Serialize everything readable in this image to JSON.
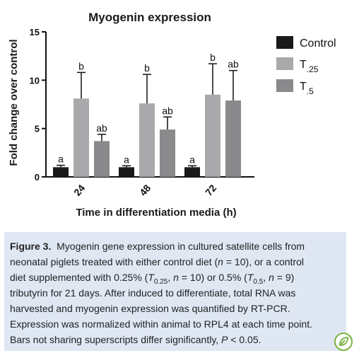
{
  "chart_data": {
    "type": "bar",
    "title": "Myogenin expression",
    "xlabel": "Time in differentiation media (h)",
    "ylabel": "Fold change over control",
    "ylim": [
      0,
      15
    ],
    "yticks": [
      "0",
      "5",
      "10",
      "15"
    ],
    "categories": [
      "24",
      "48",
      "72"
    ],
    "legend_position": "right",
    "series": [
      {
        "name": "Control",
        "color": "#1a1a1a",
        "values": [
          1.0,
          1.0,
          1.0
        ],
        "errors": [
          0.2,
          0.15,
          0.15
        ],
        "labels": [
          "a",
          "a",
          "a"
        ]
      },
      {
        "name": "T.25",
        "name_main": "T",
        "name_sub": ".25",
        "color": "#a9a9ab",
        "values": [
          8.1,
          7.6,
          8.5
        ],
        "errors": [
          2.7,
          3.0,
          3.2
        ],
        "labels": [
          "b",
          "b",
          "b"
        ]
      },
      {
        "name": "T.5",
        "name_main": "T",
        "name_sub": ".5",
        "color": "#8a8a8c",
        "values": [
          3.7,
          4.9,
          7.9
        ],
        "errors": [
          0.7,
          1.3,
          3.1
        ],
        "labels": [
          "ab",
          "ab",
          "ab"
        ]
      }
    ]
  },
  "caption": {
    "label": "Figure 3.",
    "line1": "Myogenin gene expression in cultured satellite cells from",
    "line2_a": "neonatal piglets treated with either control diet (",
    "n": "n",
    "line2_b": " = 10), or a control",
    "line3_a": "diet supplemented with 0.25% (",
    "T": "T",
    "sub_025": "0.25",
    "line3_b": ", ",
    "line3_c": " = 10) or 0.5% (",
    "sub_05": "0.5",
    "line3_d": ", ",
    "line3_e": " = 9)",
    "line4": "tributyrin for 21 days. After induced to differentiate, total RNA was",
    "line5": "harvested and myogenin expression was quantified by RT-PCR.",
    "line6": "Expression was normalized within animal to RPL4 at each time point.",
    "line7_a": "Bars not sharing superscripts differ significantly, ",
    "P": "P",
    "line7_b": " < 0.05."
  },
  "icons": {
    "badge": "leaf-icon"
  }
}
